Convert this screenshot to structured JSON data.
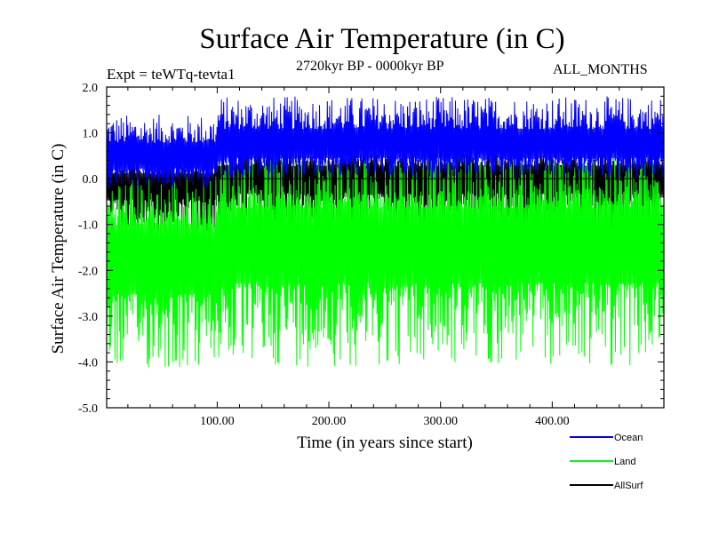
{
  "chart_data": {
    "type": "line",
    "title": "Surface Air Temperature (in C)",
    "subtitle": "2720kyr BP - 0000kyr BP",
    "experiment": "Expt = teWTq-tevta1",
    "months": "ALL_MONTHS",
    "xlabel": "Time (in years since start)",
    "ylabel": "Surface Air Temperature (in C)",
    "xlim": [
      1,
      500
    ],
    "ylim": [
      -5.0,
      2.0
    ],
    "xticks": [
      100,
      200,
      300,
      400
    ],
    "xtick_labels": [
      "100.00",
      "200.00",
      "300.00",
      "400.00"
    ],
    "yticks": [
      2.0,
      1.0,
      0.0,
      -1.0,
      -2.0,
      -3.0,
      -4.0,
      -5.0
    ],
    "ytick_labels": [
      "2.0",
      "1.0",
      "0.0",
      "-1.0",
      "-2.0",
      "-3.0",
      "-4.0",
      "-5.0"
    ],
    "reference_line_y": 0.0,
    "series": [
      {
        "name": "Ocean",
        "color": "#0000ff",
        "mean_before": 0.45,
        "mean_after": 0.7,
        "step_year": 100,
        "range_before": [
          -0.2,
          1.4
        ],
        "range_after": [
          0.0,
          1.8
        ]
      },
      {
        "name": "Land",
        "color": "#00ff00",
        "mean_before": -1.6,
        "mean_after": -1.3,
        "step_year": 100,
        "range_before": [
          -4.2,
          0.1
        ],
        "range_after": [
          -4.1,
          0.6
        ]
      },
      {
        "name": "AllSurf",
        "color": "#000000",
        "mean_before": -0.05,
        "mean_after": 0.1,
        "step_year": 100,
        "range_before": [
          -1.2,
          0.4
        ],
        "range_after": [
          -1.1,
          0.6
        ]
      }
    ]
  }
}
